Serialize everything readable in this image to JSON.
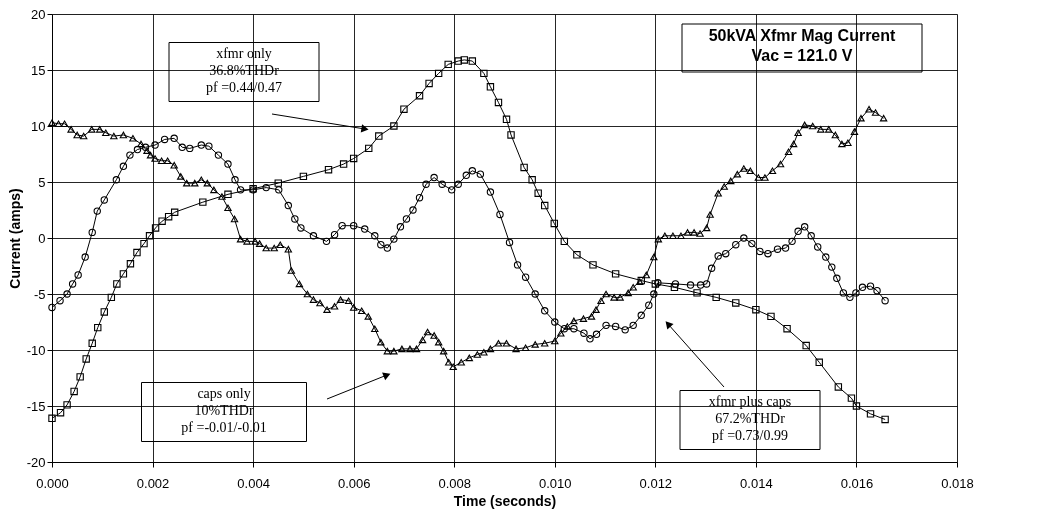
{
  "chart_data": {
    "type": "line",
    "title": "50kVA Xfmr Mag Current",
    "subtitle": "Vac = 121.0 V",
    "xlabel": "Time (seconds)",
    "ylabel": "Current (amps)",
    "xlim": [
      0,
      0.018
    ],
    "xticks": [
      {
        "value": 0,
        "label": "0.000"
      },
      {
        "value": 0.002,
        "label": "0.002"
      },
      {
        "value": 0.004,
        "label": "0.004"
      },
      {
        "value": 0.006,
        "label": "0.006"
      },
      {
        "value": 0.008,
        "label": "0.008"
      },
      {
        "value": 0.01,
        "label": "0.010"
      },
      {
        "value": 0.012,
        "label": "0.012"
      },
      {
        "value": 0.014,
        "label": "0.014"
      },
      {
        "value": 0.016,
        "label": "0.016"
      },
      {
        "value": 0.018,
        "label": "0.018"
      }
    ],
    "ylim": [
      -20,
      20
    ],
    "yticks": [
      -20,
      -15,
      -10,
      -5,
      0,
      5,
      10,
      15,
      20
    ],
    "grid": true,
    "legend": false,
    "line_style": "solid",
    "annotations": [
      "xfmr only\n36.8%THDr\npf =0.44/0.47",
      "caps only\n10%THDr\npf =-0.01/-0.01",
      "xfmr plus caps\n67.2%THDr\npf =0.73/0.99"
    ],
    "series": [
      {
        "color": "#000000",
        "marker": "square",
        "x": [
          0,
          0.00017,
          0.0003,
          0.00044,
          0.00056,
          0.00068,
          0.0008,
          0.00091,
          0.00104,
          0.00118,
          0.00129,
          0.00142,
          0.00156,
          0.00169,
          0.00183,
          0.00194,
          0.00206,
          0.00219,
          0.00232,
          0.00244,
          0.003,
          0.0035,
          0.004,
          0.0045,
          0.005,
          0.0055,
          0.0058,
          0.006,
          0.0063,
          0.0065,
          0.0068,
          0.007,
          0.00731,
          0.0075,
          0.00769,
          0.00788,
          0.00808,
          0.0082,
          0.00836,
          0.00859,
          0.00872,
          0.00888,
          0.00904,
          0.00913,
          0.00939,
          0.00955,
          0.00967,
          0.0098,
          0.00999,
          0.01019,
          0.01044,
          0.01076,
          0.01121,
          0.01172,
          0.012,
          0.01238,
          0.01283,
          0.01321,
          0.0136,
          0.014,
          0.0143,
          0.01462,
          0.015,
          0.01526,
          0.01564,
          0.0159,
          0.016,
          0.01628,
          0.01657
        ],
        "values": [
          -16.1,
          -15.6,
          -14.9,
          -13.7,
          -12.4,
          -10.8,
          -9.4,
          -8.0,
          -6.6,
          -5.3,
          -4.1,
          -3.2,
          -2.3,
          -1.3,
          -0.5,
          0.2,
          0.9,
          1.5,
          1.9,
          2.3,
          3.2,
          3.9,
          4.4,
          4.9,
          5.5,
          6.1,
          6.6,
          7.1,
          8.0,
          9.1,
          10.0,
          11.5,
          12.7,
          13.8,
          14.7,
          15.5,
          15.8,
          15.9,
          15.8,
          14.7,
          13.5,
          12.1,
          10.6,
          9.2,
          6.3,
          5.2,
          4.0,
          2.9,
          1.3,
          -0.3,
          -1.5,
          -2.4,
          -3.2,
          -3.8,
          -4.1,
          -4.4,
          -4.9,
          -5.3,
          -5.8,
          -6.4,
          -7.0,
          -8.1,
          -9.6,
          -11.1,
          -13.3,
          -14.3,
          -15.0,
          -15.7,
          -16.2
        ]
      },
      {
        "color": "#000000",
        "marker": "triangle",
        "x": [
          0,
          0.00013,
          0.00025,
          0.00038,
          0.0005,
          0.00063,
          0.00079,
          0.00095,
          0.00107,
          0.00123,
          0.00142,
          0.00161,
          0.00177,
          0.00189,
          0.00196,
          0.00205,
          0.00218,
          0.0023,
          0.00243,
          0.00256,
          0.00268,
          0.00284,
          0.00297,
          0.00309,
          0.00322,
          0.00338,
          0.0035,
          0.00363,
          0.00375,
          0.00388,
          0.00404,
          0.00413,
          0.00426,
          0.00442,
          0.00454,
          0.0047,
          0.00476,
          0.00492,
          0.00508,
          0.0052,
          0.00533,
          0.00547,
          0.00562,
          0.00574,
          0.0059,
          0.006,
          0.00616,
          0.00629,
          0.00642,
          0.00654,
          0.00667,
          0.0068,
          0.00696,
          0.00712,
          0.00725,
          0.00737,
          0.00747,
          0.0076,
          0.00769,
          0.00779,
          0.00789,
          0.00798,
          0.00814,
          0.0083,
          0.00846,
          0.00859,
          0.00872,
          0.00888,
          0.00904,
          0.00923,
          0.00942,
          0.00961,
          0.0098,
          0.01,
          0.01012,
          0.01025,
          0.01038,
          0.01057,
          0.01073,
          0.01082,
          0.01092,
          0.01102,
          0.01118,
          0.0113,
          0.01146,
          0.01156,
          0.01169,
          0.01182,
          0.01197,
          0.01206,
          0.01219,
          0.01235,
          0.01251,
          0.01264,
          0.01277,
          0.01289,
          0.01302,
          0.01309,
          0.01325,
          0.01337,
          0.0135,
          0.01363,
          0.01376,
          0.01389,
          0.01405,
          0.01418,
          0.01433,
          0.01449,
          0.01465,
          0.01475,
          0.01484,
          0.01497,
          0.01513,
          0.01529,
          0.01545,
          0.01558,
          0.01571,
          0.01583,
          0.01596,
          0.01609,
          0.01625,
          0.01638,
          0.01654
        ],
        "values": [
          10.3,
          10.2,
          10.2,
          9.7,
          9.2,
          9.1,
          9.7,
          9.7,
          9.4,
          9.1,
          9.2,
          8.9,
          8.4,
          7.8,
          7.4,
          7.1,
          6.9,
          6.9,
          6.5,
          5.5,
          4.9,
          4.9,
          5.2,
          4.9,
          4.3,
          3.7,
          2.7,
          1.7,
          -0.1,
          -0.3,
          -0.3,
          -0.5,
          -0.9,
          -0.9,
          -0.6,
          -1.0,
          -2.9,
          -4.1,
          -5.0,
          -5.5,
          -5.8,
          -6.4,
          -6.1,
          -5.5,
          -5.6,
          -6.2,
          -6.5,
          -7.0,
          -8.1,
          -9.3,
          -10.1,
          -10.1,
          -9.9,
          -9.9,
          -9.9,
          -9.1,
          -8.4,
          -8.7,
          -9.3,
          -10.1,
          -11.1,
          -11.5,
          -11.1,
          -10.7,
          -10.4,
          -10.2,
          -9.9,
          -9.4,
          -9.4,
          -9.9,
          -9.8,
          -9.5,
          -9.4,
          -9.2,
          -8.5,
          -7.9,
          -7.4,
          -7.2,
          -7.0,
          -6.4,
          -5.6,
          -5.0,
          -5.3,
          -5.3,
          -4.9,
          -4.4,
          -3.9,
          -3.3,
          -1.7,
          -0.1,
          0.2,
          0.2,
          0.2,
          0.5,
          0.5,
          0.4,
          0.9,
          2.1,
          4.0,
          4.6,
          5.1,
          5.7,
          6.2,
          6.0,
          5.4,
          5.4,
          6.0,
          6.6,
          7.7,
          8.4,
          9.4,
          10.1,
          10.0,
          9.7,
          9.7,
          9.2,
          8.4,
          8.5,
          9.5,
          10.7,
          11.5,
          11.2,
          10.7
        ]
      },
      {
        "color": "#000000",
        "marker": "circle",
        "x": [
          0,
          0.00016,
          0.0003,
          0.00041,
          0.00052,
          0.00066,
          0.0008,
          0.0009,
          0.00104,
          0.00128,
          0.00142,
          0.00155,
          0.0017,
          0.00186,
          0.00205,
          0.00224,
          0.00243,
          0.00259,
          0.00274,
          0.00297,
          0.00312,
          0.00331,
          0.0035,
          0.00364,
          0.00375,
          0.004,
          0.00426,
          0.00451,
          0.0047,
          0.00483,
          0.00495,
          0.0052,
          0.00546,
          0.00562,
          0.00577,
          0.006,
          0.00622,
          0.00642,
          0.00654,
          0.00667,
          0.0068,
          0.00693,
          0.00705,
          0.00718,
          0.00731,
          0.00744,
          0.0076,
          0.00776,
          0.00795,
          0.00808,
          0.00824,
          0.00836,
          0.00852,
          0.00872,
          0.00891,
          0.0091,
          0.00926,
          0.00942,
          0.00961,
          0.0098,
          0.01,
          0.01019,
          0.01038,
          0.01058,
          0.0107,
          0.01083,
          0.01102,
          0.01121,
          0.0114,
          0.01156,
          0.01172,
          0.01187,
          0.01197,
          0.01205,
          0.0124,
          0.0127,
          0.0129,
          0.01302,
          0.01312,
          0.01325,
          0.0134,
          0.0136,
          0.01376,
          0.01392,
          0.01408,
          0.01424,
          0.01443,
          0.01459,
          0.01472,
          0.01484,
          0.01497,
          0.0151,
          0.01523,
          0.01539,
          0.01551,
          0.01561,
          0.01574,
          0.01587,
          0.01599,
          0.01612,
          0.01628,
          0.01641,
          0.01657
        ],
        "values": [
          -6.2,
          -5.6,
          -5.0,
          -4.1,
          -3.3,
          -1.7,
          0.5,
          2.4,
          3.4,
          5.2,
          6.4,
          7.4,
          7.9,
          8.1,
          8.3,
          8.8,
          8.9,
          8.1,
          8.0,
          8.3,
          8.2,
          7.4,
          6.6,
          5.2,
          4.3,
          4.3,
          4.5,
          4.3,
          2.9,
          1.7,
          0.9,
          0.2,
          -0.3,
          0.3,
          1.1,
          1.1,
          0.8,
          0.2,
          -0.6,
          -0.9,
          -0.1,
          1.0,
          1.7,
          2.5,
          3.6,
          4.8,
          5.4,
          4.8,
          4.3,
          4.8,
          5.6,
          6.0,
          5.7,
          4.1,
          2.1,
          -0.4,
          -2.4,
          -3.5,
          -5.0,
          -6.5,
          -7.5,
          -8.1,
          -8.1,
          -8.5,
          -9.0,
          -8.6,
          -7.8,
          -7.9,
          -8.2,
          -7.8,
          -6.9,
          -6.0,
          -5.0,
          -4.0,
          -4.1,
          -4.2,
          -4.2,
          -4.1,
          -2.7,
          -1.6,
          -1.4,
          -0.6,
          0.0,
          -0.5,
          -1.2,
          -1.4,
          -1.0,
          -0.9,
          -0.3,
          0.6,
          1.0,
          0.2,
          -0.8,
          -1.7,
          -2.6,
          -3.6,
          -4.9,
          -5.3,
          -4.9,
          -4.4,
          -4.3,
          -4.7,
          -5.6
        ]
      }
    ]
  }
}
